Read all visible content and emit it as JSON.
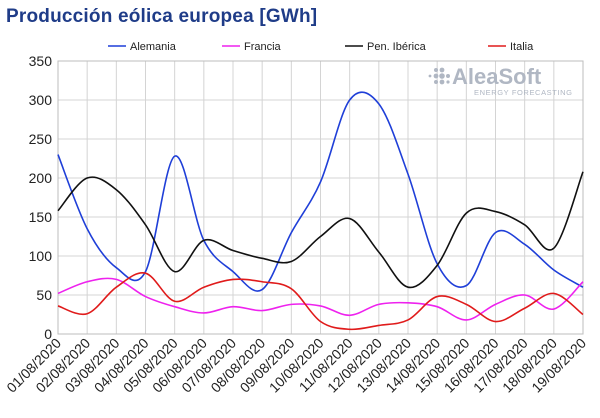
{
  "chart_data": {
    "type": "line",
    "title": "Producción eólica europea [GWh]",
    "xlabel": "",
    "ylabel": "",
    "ylim": [
      0,
      350
    ],
    "yticks": [
      0,
      50,
      100,
      150,
      200,
      250,
      300,
      350
    ],
    "categories": [
      "01/08/2020",
      "02/08/2020",
      "03/08/2020",
      "04/08/2020",
      "05/08/2020",
      "06/08/2020",
      "07/08/2020",
      "08/08/2020",
      "09/08/2020",
      "10/08/2020",
      "11/08/2020",
      "12/08/2020",
      "13/08/2020",
      "14/08/2020",
      "15/08/2020",
      "16/08/2020",
      "17/08/2020",
      "18/08/2020",
      "19/08/2020"
    ],
    "grid": true,
    "legend_position": "top",
    "series": [
      {
        "name": "Alemania",
        "color": "#1f3fd8",
        "values": [
          230,
          135,
          85,
          80,
          228,
          120,
          80,
          57,
          130,
          195,
          300,
          295,
          205,
          90,
          62,
          130,
          115,
          82,
          60
        ]
      },
      {
        "name": "Francia",
        "color": "#ee22ee",
        "values": [
          52,
          67,
          70,
          48,
          35,
          27,
          35,
          30,
          38,
          36,
          24,
          38,
          40,
          35,
          18,
          38,
          50,
          32,
          67
        ]
      },
      {
        "name": "Pen. Ibérica",
        "color": "#111111",
        "values": [
          158,
          200,
          185,
          140,
          80,
          120,
          107,
          97,
          93,
          125,
          148,
          105,
          60,
          88,
          155,
          157,
          140,
          110,
          208
        ]
      },
      {
        "name": "Italia",
        "color": "#e01b1b",
        "values": [
          36,
          26,
          60,
          78,
          42,
          60,
          70,
          67,
          58,
          16,
          6,
          11,
          18,
          48,
          38,
          16,
          33,
          52,
          25
        ]
      }
    ]
  },
  "watermark": {
    "name": "AleaSoft",
    "tagline": "ENERGY FORECASTING",
    "icon": "dots-logo-icon"
  }
}
